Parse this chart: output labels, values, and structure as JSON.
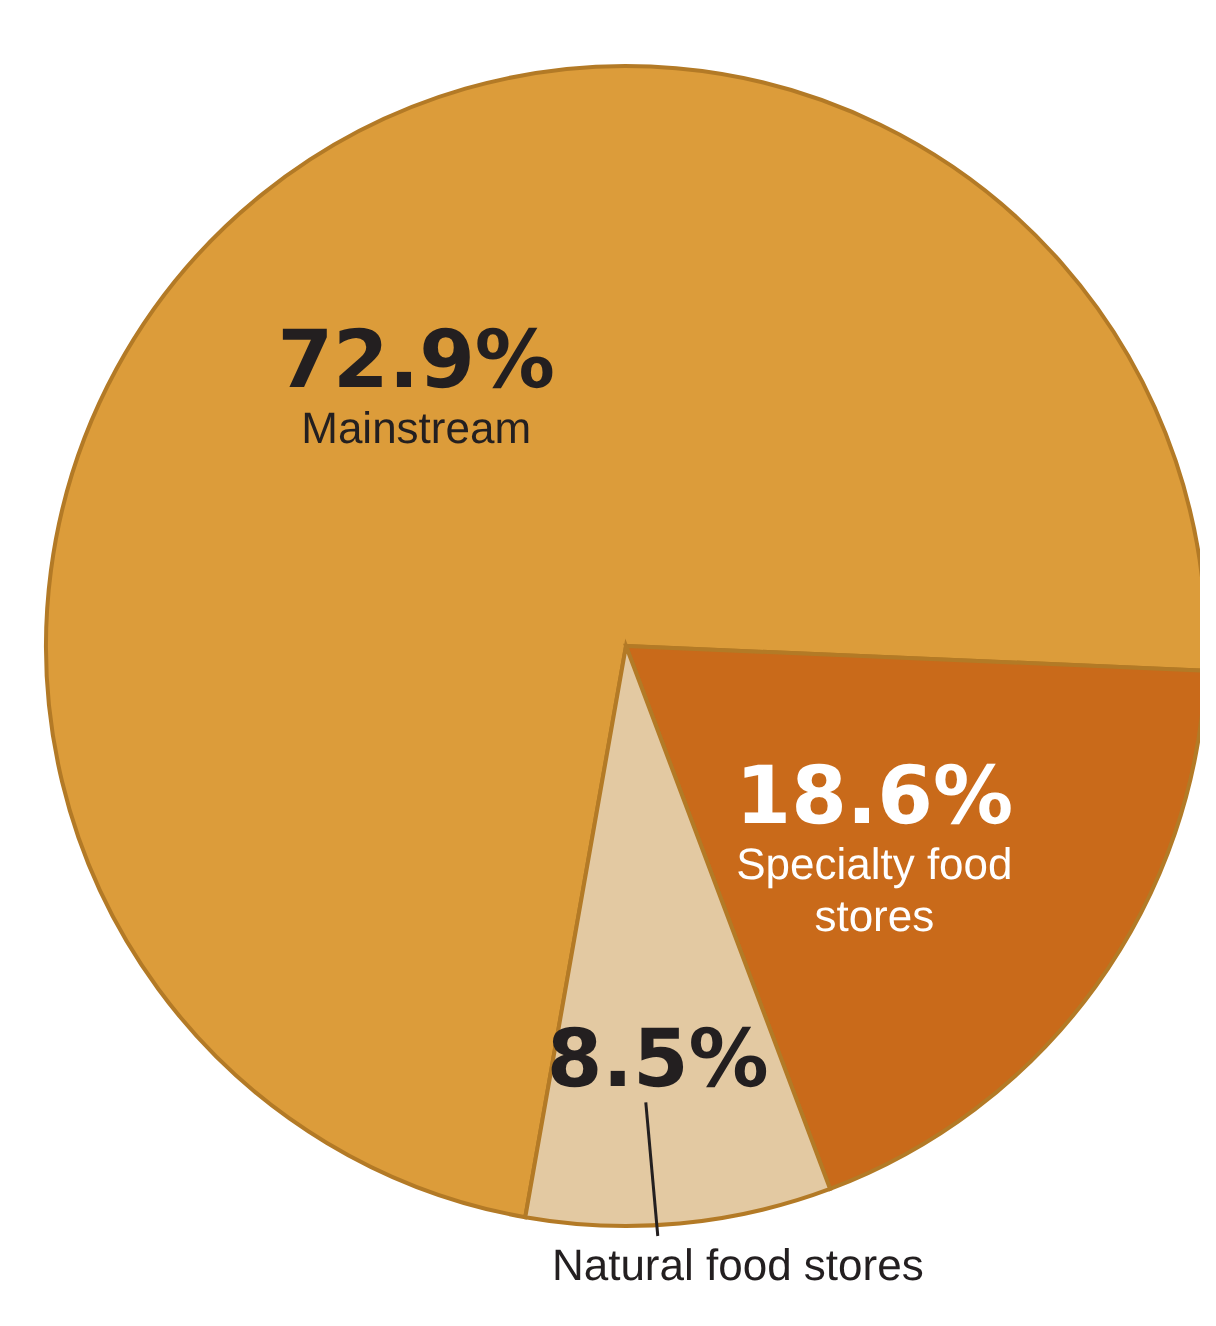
{
  "chart_data": {
    "type": "pie",
    "categories": [
      "Mainstream",
      "Specialty food stores",
      "Natural food stores"
    ],
    "values": [
      72.9,
      18.6,
      8.5
    ],
    "colors": [
      "#dc9c3a",
      "#c96a1a",
      "#e3c9a2"
    ],
    "value_labels": [
      "72.9%",
      "18.6%",
      "8.5%"
    ],
    "legend": false
  }
}
